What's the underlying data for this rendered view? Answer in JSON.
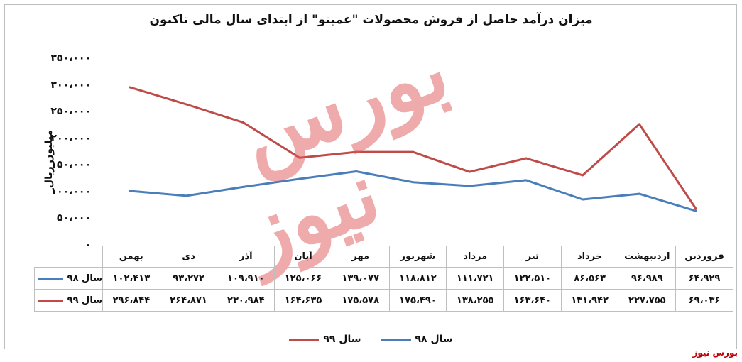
{
  "chart_data": {
    "type": "line",
    "title": "میزان درآمد حاصل از فروش محصولات \"غمینو\" از ابتدای سال مالی تاکنون",
    "ylabel": "میلیون ریال",
    "xlabel": "",
    "ylim": [
      0,
      350000
    ],
    "yticks": [
      0,
      50000,
      100000,
      150000,
      200000,
      250000,
      300000,
      350000
    ],
    "ytick_labels": [
      "۰",
      "۵۰،۰۰۰",
      "۱۰۰،۰۰۰",
      "۱۵۰،۰۰۰",
      "۲۰۰،۰۰۰",
      "۲۵۰،۰۰۰",
      "۳۰۰،۰۰۰",
      "۳۵۰،۰۰۰"
    ],
    "categories": [
      "فروردین",
      "اردیبهشت",
      "خرداد",
      "تیر",
      "مرداد",
      "شهریور",
      "مهر",
      "آبان",
      "آذر",
      "دی",
      "بهمن"
    ],
    "grid": false,
    "legend": "bottom",
    "series": [
      {
        "name": "سال ۹۸",
        "color": "#4a7ebb",
        "values": [
          64929,
          96989,
          86563,
          122510,
          111721,
          118812,
          139077,
          125066,
          109910,
          93272,
          102413
        ],
        "labels": [
          "۶۴،۹۲۹",
          "۹۶،۹۸۹",
          "۸۶،۵۶۳",
          "۱۲۲،۵۱۰",
          "۱۱۱،۷۲۱",
          "۱۱۸،۸۱۲",
          "۱۳۹،۰۷۷",
          "۱۲۵،۰۶۶",
          "۱۰۹،۹۱۰",
          "۹۳،۲۷۲",
          "۱۰۲،۴۱۳"
        ]
      },
      {
        "name": "سال ۹۹",
        "color": "#be4b48",
        "values": [
          69036,
          227755,
          131942,
          163640,
          138255,
          175490,
          175578,
          164635,
          230984,
          264871,
          296844
        ],
        "labels": [
          "۶۹،۰۳۶",
          "۲۲۷،۷۵۵",
          "۱۳۱،۹۴۲",
          "۱۶۳،۶۴۰",
          "۱۳۸،۲۵۵",
          "۱۷۵،۴۹۰",
          "۱۷۵،۵۷۸",
          "۱۶۴،۶۳۵",
          "۲۳۰،۹۸۴",
          "۲۶۴،۸۷۱",
          "۲۹۶،۸۴۴"
        ]
      }
    ]
  },
  "watermark": {
    "line1": "بورس",
    "line2": "نیوز"
  },
  "source": "بورس نیوز"
}
